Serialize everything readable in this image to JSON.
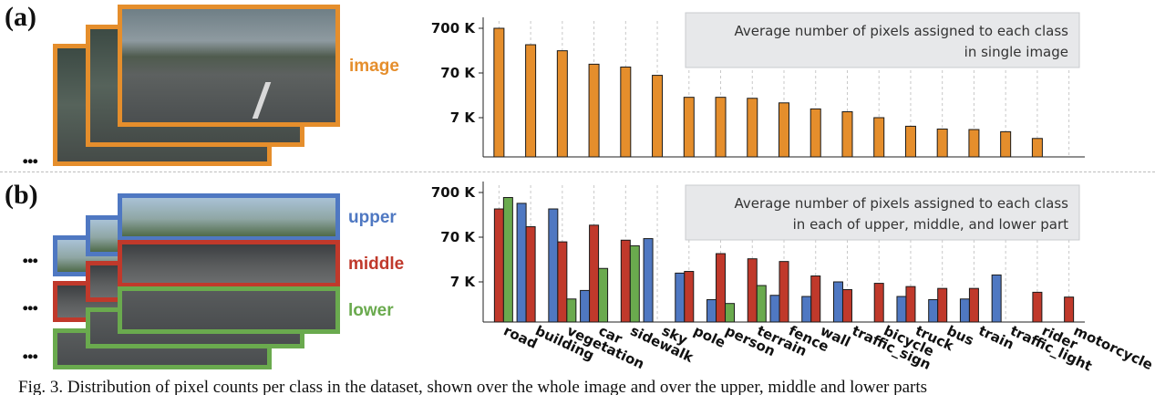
{
  "panels": {
    "a": {
      "label": "(a)",
      "image_label": "image",
      "legend_box": [
        "Average number of pixels assigned to each class",
        "in single image"
      ]
    },
    "b": {
      "label": "(b)",
      "part_labels": {
        "upper": "upper",
        "middle": "middle",
        "lower": "lower"
      },
      "legend_box": [
        "Average number of pixels assigned to each class",
        "in each of upper, middle, and lower part"
      ]
    }
  },
  "ellipsis": "...",
  "colors": {
    "orange": "#e58e2c",
    "blue": "#4f78c2",
    "red": "#c0392b",
    "green": "#6aaa4e",
    "box_bg": "#e7e8ea"
  },
  "chart_data": [
    {
      "type": "bar",
      "scale": "log",
      "ytick_labels": [
        "700 K",
        "70 K",
        "7 K"
      ],
      "yticks": [
        700000,
        70000,
        7000
      ],
      "ylim": [
        1800,
        700000
      ],
      "grid": "vertical dashed",
      "categories": [
        "road",
        "building",
        "vegetation",
        "car",
        "sidewalk",
        "sky",
        "pole",
        "person",
        "terrain",
        "fence",
        "wall",
        "traffic_sign",
        "bicycle",
        "truck",
        "bus",
        "train",
        "traffic_light",
        "rider",
        "motorcycle"
      ],
      "series": [
        {
          "values": [
            700000,
            300000,
            220000,
            110000,
            95000,
            62000,
            20000,
            20000,
            19000,
            15000,
            11000,
            9500,
            7000,
            4500,
            3900,
            3800,
            3400,
            2400,
            0
          ]
        }
      ]
    },
    {
      "type": "bar",
      "scale": "log",
      "ytick_labels": [
        "700 K",
        "70 K",
        "7 K"
      ],
      "yticks": [
        700000,
        70000,
        7000
      ],
      "ylim": [
        1800,
        700000
      ],
      "grid": "vertical dashed",
      "categories": [
        "road",
        "building",
        "vegetation",
        "car",
        "sidewalk",
        "sky",
        "pole",
        "person",
        "terrain",
        "fence",
        "wall",
        "traffic_sign",
        "bicycle",
        "truck",
        "bus",
        "train",
        "traffic_light",
        "rider",
        "motorcycle"
      ],
      "series": [
        {
          "values": [
            0,
            400000,
            300000,
            4500,
            0,
            65000,
            11000,
            2800,
            0,
            3500,
            3300,
            7000,
            0,
            3300,
            2800,
            2900,
            10000,
            0,
            0
          ]
        },
        {
          "values": [
            300000,
            120000,
            55000,
            130000,
            60000,
            0,
            12000,
            30000,
            23000,
            20000,
            9500,
            4700,
            6500,
            5500,
            5000,
            5000,
            0,
            4100,
            3200
          ]
        },
        {
          "values": [
            540000,
            0,
            2900,
            14000,
            45000,
            0,
            0,
            2300,
            5800,
            0,
            0,
            0,
            0,
            0,
            0,
            0,
            0,
            0,
            0
          ]
        }
      ]
    }
  ],
  "caption": "Fig. 3. Distribution of pixel counts per class in the dataset, shown over the whole image and over the upper, middle and lower parts"
}
